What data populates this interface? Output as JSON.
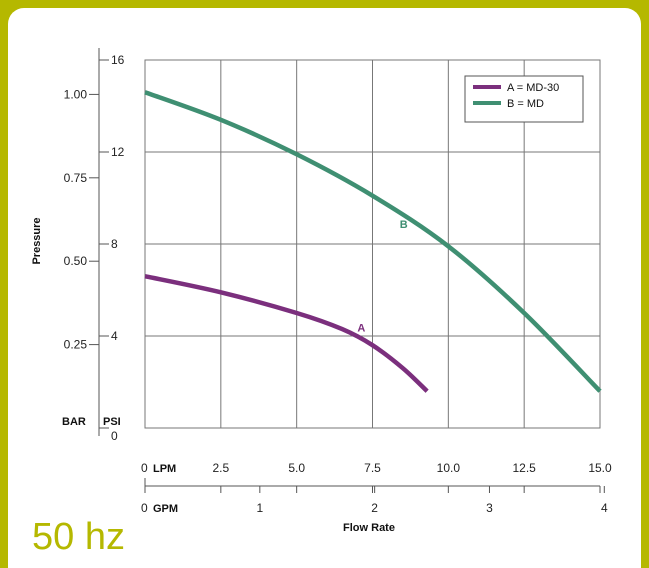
{
  "chart_data": {
    "type": "line",
    "title": "",
    "xlabel": "Flow Rate",
    "ylabel": "Pressure",
    "footer_label": "50 hz",
    "x_lpm": {
      "unit": "LPM",
      "ticks": [
        "0",
        "2.5",
        "5.0",
        "7.5",
        "10.0",
        "12.5",
        "15.0"
      ],
      "range": [
        0,
        15
      ]
    },
    "x_gpm": {
      "unit": "GPM",
      "ticks": [
        "0",
        "1",
        "2",
        "3",
        "4"
      ]
    },
    "y_psi": {
      "unit": "PSI",
      "ticks": [
        "0",
        "4",
        "8",
        "12",
        "16"
      ],
      "range": [
        0,
        16
      ]
    },
    "y_bar": {
      "unit": "BAR",
      "ticks": [
        "0.25",
        "0.50",
        "0.75",
        "1.00"
      ]
    },
    "grid": true,
    "legend": {
      "position": "top-right",
      "entries": [
        "A = MD-30",
        "B = MD"
      ]
    },
    "series": [
      {
        "name": "A = MD-30",
        "label": "A",
        "color": "#7b2f7d",
        "x": [
          0,
          2.5,
          5.0,
          6.5,
          7.5,
          8.5,
          9.3
        ],
        "y": [
          6.6,
          5.9,
          5.0,
          4.3,
          3.6,
          2.6,
          1.6
        ]
      },
      {
        "name": "B = MD",
        "label": "B",
        "color": "#3f8f72",
        "x": [
          0,
          2.5,
          5.0,
          7.5,
          10.0,
          12.5,
          15.0
        ],
        "y": [
          14.6,
          13.4,
          11.9,
          10.1,
          7.9,
          5.0,
          1.6
        ]
      }
    ]
  }
}
